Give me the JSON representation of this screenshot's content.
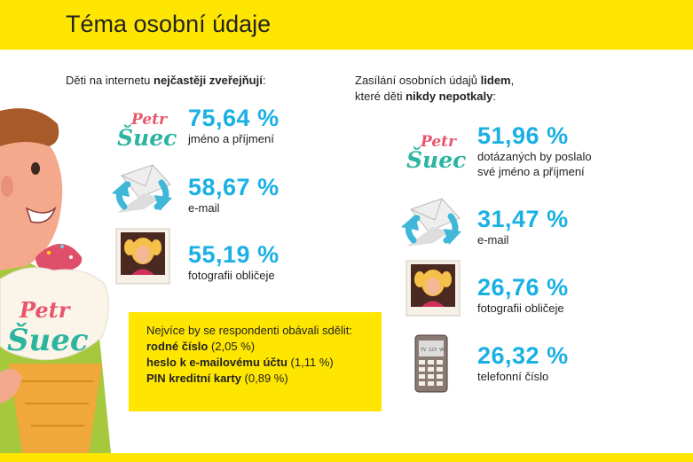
{
  "header": {
    "title": "Téma osobní údaje"
  },
  "left": {
    "intro_plain": "Děti na internetu ",
    "intro_bold": "nejčastěji zveřejňují",
    "intro_end": ":",
    "stats": [
      {
        "pct": "75,64 %",
        "label": "jméno a příjmení",
        "icon": "name-logo-icon"
      },
      {
        "pct": "58,67 %",
        "label": "e-mail",
        "icon": "email-icon"
      },
      {
        "pct": "55,19 %",
        "label": "fotografii obličeje",
        "icon": "photo-icon"
      }
    ]
  },
  "right": {
    "intro_1a": "Zasílání osobních údajů ",
    "intro_1b": "lidem",
    "intro_1c": ",",
    "intro_2a": "které děti ",
    "intro_2b": "nikdy nepotkaly",
    "intro_2c": ":",
    "stats": [
      {
        "pct": "51,96 %",
        "label": "dotázaných by poslalo",
        "label2": "své jméno a příjmení",
        "icon": "name-logo-icon"
      },
      {
        "pct": "31,47 %",
        "label": "e-mail",
        "icon": "email-icon"
      },
      {
        "pct": "26,76 %",
        "label": "fotografii obličeje",
        "icon": "photo-icon"
      },
      {
        "pct": "26,32 %",
        "label": "telefonní číslo",
        "icon": "phone-icon"
      }
    ]
  },
  "box": {
    "heading": "Nejvíce by se respondenti obávali sdělit:",
    "items": [
      {
        "bold": "rodné číslo",
        "rest": " (2,05 %)"
      },
      {
        "bold": "heslo k e-mailovému účtu",
        "rest": " (1,11 %)"
      },
      {
        "bold": "PIN kreditní karty",
        "rest": " (0,89 %)"
      }
    ]
  },
  "logo_text": {
    "line1": "Petr",
    "line2": "Šuec"
  },
  "phone_screen_text": "TV 123 VR",
  "colors": {
    "accent": "#1ab0e4",
    "yellow": "#ffe600",
    "logo_pink": "#e8566c",
    "logo_teal": "#2bb5a0"
  }
}
